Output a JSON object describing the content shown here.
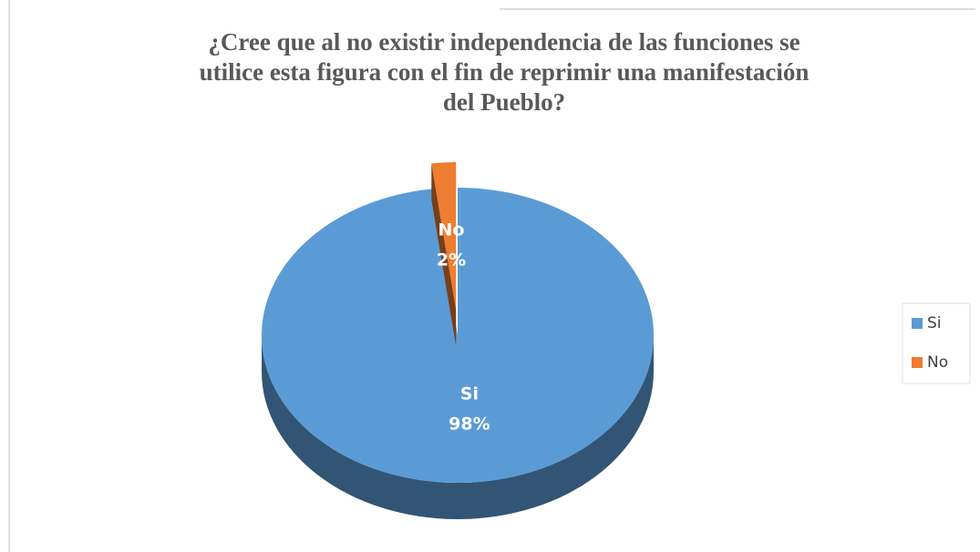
{
  "chart_data": {
    "type": "pie",
    "title": "¿Cree que al no existir independencia de las funciones se utilice esta figura con el fin de reprimir una manifestación del Pueblo?",
    "categories": [
      "Si",
      "No"
    ],
    "values": [
      98,
      2
    ],
    "value_labels": [
      "98%",
      "2%"
    ],
    "colors": [
      "#5b9bd5",
      "#ed7d31"
    ],
    "legend": "right"
  }
}
